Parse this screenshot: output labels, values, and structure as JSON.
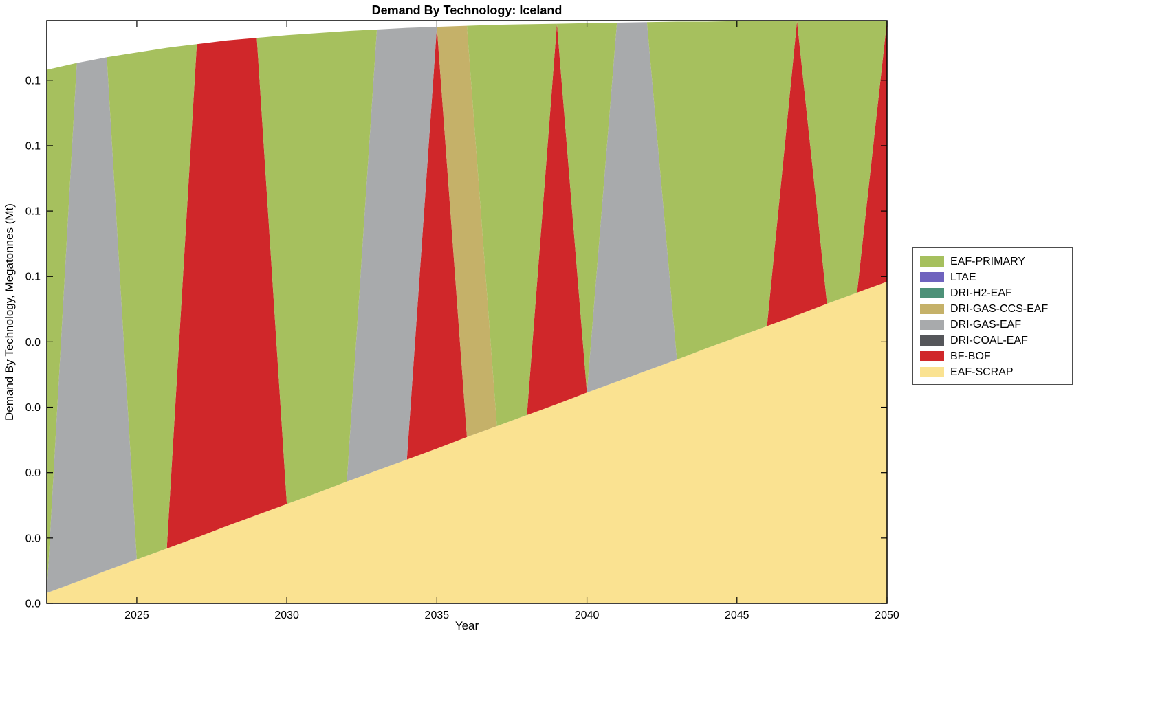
{
  "figure": {
    "title": "Demand By Technology: Iceland",
    "xlabel": "Year",
    "ylabel": "Demand By Technology, Megatonnes (Mt)"
  },
  "chart_data": {
    "type": "area",
    "stacked": true,
    "title": "Demand By Technology: Iceland",
    "xlabel": "Year",
    "ylabel": "Demand By Technology, Megatonnes (Mt)",
    "grid": false,
    "legend_position": "right-outside",
    "xlim": [
      2022,
      2050
    ],
    "ylim": [
      0,
      0.1114
    ],
    "x_ticks": [
      2025,
      2030,
      2035,
      2040,
      2045,
      2050
    ],
    "x_tick_labels": [
      "2025",
      "2030",
      "2035",
      "2040",
      "2045",
      "2050"
    ],
    "y_ticks": [
      0,
      0.0125,
      0.025,
      0.0375,
      0.05,
      0.0625,
      0.075,
      0.0875,
      0.1
    ],
    "y_tick_labels": [
      "0.0",
      "0.0",
      "0.0",
      "0.0",
      "0.0",
      "0.1",
      "0.1",
      "0.1",
      "0.1"
    ],
    "x": [
      2022,
      2023,
      2024,
      2025,
      2026,
      2027,
      2028,
      2029,
      2030,
      2031,
      2032,
      2033,
      2034,
      2035,
      2036,
      2037,
      2038,
      2039,
      2040,
      2041,
      2042,
      2043,
      2044,
      2045,
      2046,
      2047,
      2048,
      2049,
      2050
    ],
    "series": [
      {
        "name": "EAF-SCRAP",
        "color": "#fae291",
        "values": [
          0.002,
          0.0041,
          0.0063,
          0.0084,
          0.0105,
          0.0126,
          0.0148,
          0.0169,
          0.019,
          0.0211,
          0.0233,
          0.0254,
          0.0275,
          0.0296,
          0.0318,
          0.0339,
          0.036,
          0.0381,
          0.0403,
          0.0424,
          0.0445,
          0.0466,
          0.0488,
          0.0509,
          0.053,
          0.0551,
          0.0573,
          0.0594,
          0.0615
        ]
      },
      {
        "name": "BF-BOF",
        "color": "#d0272a",
        "values": [
          0,
          0,
          0,
          0,
          0,
          0.0943,
          0.0928,
          0.0912,
          0,
          0,
          0,
          0,
          0,
          0.0806,
          0,
          0,
          0,
          0.0727,
          0,
          0,
          0,
          0,
          0,
          0,
          0,
          0.0562,
          0,
          0,
          0.0499
        ]
      },
      {
        "name": "DRI-COAL-EAF",
        "color": "#55565a",
        "values": [
          0,
          0,
          0,
          0,
          0,
          0,
          0,
          0,
          0,
          0,
          0,
          0,
          0,
          0,
          0,
          0,
          0,
          0,
          0,
          0,
          0,
          0,
          0,
          0,
          0,
          0,
          0,
          0,
          0
        ]
      },
      {
        "name": "DRI-GAS-EAF",
        "color": "#a8aaac",
        "values": [
          0,
          0.0992,
          0.0981,
          0,
          0,
          0,
          0,
          0,
          0,
          0,
          0,
          0.0843,
          0.0825,
          0,
          0,
          0,
          0,
          0,
          0,
          0.0686,
          0.0666,
          0,
          0,
          0,
          0,
          0,
          0,
          0,
          0
        ]
      },
      {
        "name": "DRI-GAS-CCS-EAF",
        "color": "#c5b169",
        "values": [
          0,
          0,
          0,
          0,
          0,
          0,
          0,
          0,
          0,
          0,
          0,
          0,
          0,
          0,
          0.0786,
          0,
          0,
          0,
          0,
          0,
          0,
          0,
          0,
          0,
          0,
          0,
          0,
          0,
          0
        ]
      },
      {
        "name": "DRI-H2-EAF",
        "color": "#4d9178",
        "values": [
          0,
          0,
          0,
          0,
          0,
          0,
          0,
          0,
          0,
          0,
          0,
          0,
          0,
          0,
          0,
          0,
          0,
          0,
          0,
          0,
          0,
          0,
          0,
          0,
          0,
          0,
          0,
          0,
          0
        ]
      },
      {
        "name": "LTAE",
        "color": "#6f63be",
        "values": [
          0,
          0,
          0,
          0,
          0,
          0,
          0,
          0,
          0,
          0,
          0,
          0,
          0,
          0,
          0,
          0,
          0,
          0,
          0,
          0,
          0,
          0,
          0,
          0,
          0,
          0,
          0,
          0,
          0
        ]
      },
      {
        "name": "EAF-PRIMARY",
        "color": "#a6c05e",
        "values": [
          0.1,
          0,
          0,
          0.0969,
          0.0957,
          0,
          0,
          0,
          0.0896,
          0.0879,
          0.0861,
          0,
          0,
          0,
          0,
          0.0767,
          0.0747,
          0,
          0.0706,
          0,
          0,
          0.0646,
          0.0624,
          0.0604,
          0.0583,
          0,
          0.0541,
          0.052,
          0
        ]
      }
    ]
  }
}
